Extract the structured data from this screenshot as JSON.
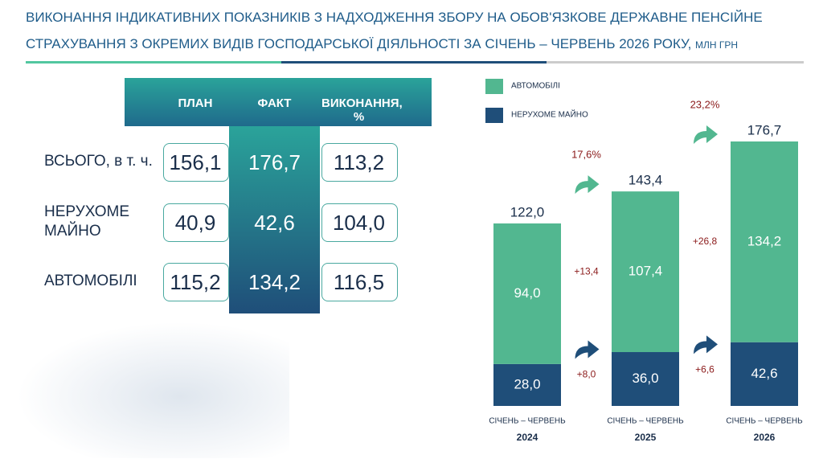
{
  "header": {
    "title_lines": [
      "ВИКОНАННЯ ІНДИКАТИВНИХ ПОКАЗНИКІВ З НАДХОДЖЕННЯ ЗБОРУ НА ОБОВ'ЯЗКОВЕ ДЕРЖАВНЕ ПЕНСІЙНЕ",
      "СТРАХУВАННЯ З ОКРЕМИХ ВИДІВ ГОСПОДАРСЬКОЇ ДІЯЛЬНОСТІ ЗА СІЧЕНЬ – ЧЕРВЕНЬ 2026 РОКУ,"
    ],
    "unit": "МЛН ГРН"
  },
  "table": {
    "columns": [
      "ПЛАН",
      "ФАКТ",
      "ВИКОНАННЯ, %"
    ],
    "rows": [
      {
        "label": "ВСЬОГО, в т. ч.",
        "cells": [
          "156,1",
          "176,7",
          "113,2"
        ]
      },
      {
        "label": "НЕРУХОМЕ МАЙНО",
        "cells": [
          "40,9",
          "42,6",
          "104,0"
        ]
      },
      {
        "label": "АВТОМОБІЛІ",
        "cells": [
          "115,2",
          "134,2",
          "116,5"
        ]
      }
    ]
  },
  "chart_data": {
    "type": "stacked-bar",
    "period_labels": [
      "СІЧЕНЬ – ЧЕРВЕНЬ",
      "СІЧЕНЬ – ЧЕРВЕНЬ",
      "СІЧЕНЬ – ЧЕРВЕНЬ"
    ],
    "categories": [
      "2024",
      "2025",
      "2026"
    ],
    "series": [
      {
        "name": "НЕРУХОМЕ МАЙНО",
        "color": "#1f4e79",
        "values": [
          28.0,
          36.0,
          42.6
        ],
        "value_labels": [
          "28,0",
          "36,0",
          "42,6"
        ],
        "changes": [
          8.0,
          6.6
        ],
        "change_labels": [
          "+8,0",
          "+6,6"
        ]
      },
      {
        "name": "АВТОМОБІЛІ",
        "color": "#52b790",
        "values": [
          94.0,
          107.4,
          134.2
        ],
        "value_labels": [
          "94,0",
          "107,4",
          "134,2"
        ],
        "changes": [
          13.4,
          26.8
        ],
        "change_labels": [
          "+13,4",
          "+26,8"
        ]
      }
    ],
    "totals": [
      122.0,
      143.4,
      176.7
    ],
    "total_labels": [
      "122,0",
      "143,4",
      "176,7"
    ],
    "growth": [
      17.6,
      23.2
    ],
    "growth_labels": [
      "17,6%",
      "23,2%"
    ]
  }
}
